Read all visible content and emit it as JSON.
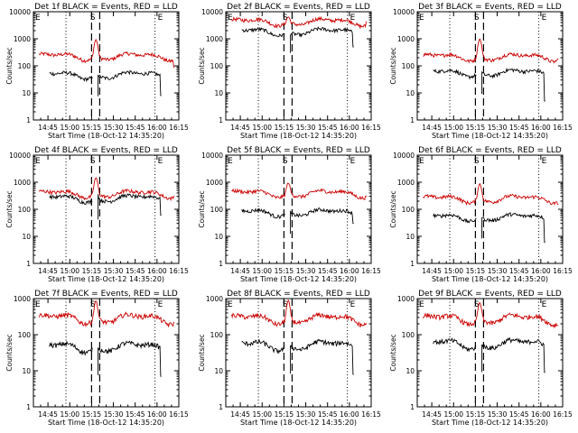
{
  "common": {
    "ylabel": "Counts/sec",
    "xlabel": "Start Time (18-Oct-12 14:35:20)",
    "x_ticks": [
      "14:45",
      "15:00",
      "15:15",
      "15:30",
      "15:45",
      "16:00",
      "16:15"
    ],
    "y_ticks": [
      "1",
      "10",
      "100",
      "1000",
      "10000"
    ],
    "marker_S": "S",
    "marker_E": "E",
    "colors": {
      "events": "#000000",
      "lld": "#cc0000"
    }
  },
  "chart_data": [
    {
      "type": "line",
      "title": "Det 1f BLACK = Events, RED = LLD",
      "x_unit": "minutes after 14:35",
      "ylim": [
        1,
        10000
      ],
      "yscale": "log",
      "xlim": [
        0,
        100
      ],
      "series": [
        {
          "color": "#cc0000",
          "base": 220,
          "peak": 950,
          "start": 4,
          "end": 97,
          "end_drop": 90,
          "gap": false
        },
        {
          "color": "#000000",
          "base": 45,
          "peak": 70,
          "start": 11,
          "end": 88,
          "end_drop": 8,
          "gap": true
        }
      ]
    },
    {
      "type": "line",
      "title": "Det 2f BLACK = Events, RED = LLD",
      "x_unit": "minutes after 14:35",
      "ylim": [
        1,
        10000
      ],
      "yscale": "log",
      "xlim": [
        0,
        100
      ],
      "series": [
        {
          "color": "#cc0000",
          "base": 4200,
          "peak": 7000,
          "start": 4,
          "end": 97,
          "end_drop": 4200,
          "gap": false
        },
        {
          "color": "#000000",
          "base": 1800,
          "peak": 1900,
          "start": 11,
          "end": 88,
          "end_drop": 500,
          "gap": true
        }
      ]
    },
    {
      "type": "line",
      "title": "Det 3f BLACK = Events, RED = LLD",
      "x_unit": "minutes after 14:35",
      "ylim": [
        1,
        10000
      ],
      "yscale": "log",
      "xlim": [
        0,
        100
      ],
      "series": [
        {
          "color": "#cc0000",
          "base": 210,
          "peak": 1000,
          "start": 4,
          "end": 97,
          "end_drop": 180,
          "gap": false
        },
        {
          "color": "#000000",
          "base": 55,
          "peak": 80,
          "start": 11,
          "end": 88,
          "end_drop": 5,
          "gap": true
        }
      ]
    },
    {
      "type": "line",
      "title": "Det 4f BLACK = Events, RED = LLD",
      "x_unit": "minutes after 14:35",
      "ylim": [
        1,
        10000
      ],
      "yscale": "log",
      "xlim": [
        0,
        100
      ],
      "series": [
        {
          "color": "#cc0000",
          "base": 370,
          "peak": 1500,
          "start": 4,
          "end": 97,
          "end_drop": 300,
          "gap": false
        },
        {
          "color": "#000000",
          "base": 250,
          "peak": 600,
          "start": 11,
          "end": 88,
          "end_drop": 60,
          "gap": true
        }
      ]
    },
    {
      "type": "line",
      "title": "Det 5f BLACK = Events, RED = LLD",
      "x_unit": "minutes after 14:35",
      "ylim": [
        1,
        10000
      ],
      "yscale": "log",
      "xlim": [
        0,
        100
      ],
      "series": [
        {
          "color": "#cc0000",
          "base": 380,
          "peak": 1000,
          "start": 4,
          "end": 97,
          "end_drop": 300,
          "gap": false
        },
        {
          "color": "#000000",
          "base": 75,
          "peak": 110,
          "start": 11,
          "end": 88,
          "end_drop": 30,
          "gap": true
        }
      ]
    },
    {
      "type": "line",
      "title": "Det 6f BLACK = Events, RED = LLD",
      "x_unit": "minutes after 14:35",
      "ylim": [
        1,
        10000
      ],
      "yscale": "log",
      "xlim": [
        0,
        100
      ],
      "series": [
        {
          "color": "#cc0000",
          "base": 240,
          "peak": 900,
          "start": 4,
          "end": 97,
          "end_drop": 150,
          "gap": false
        },
        {
          "color": "#000000",
          "base": 50,
          "peak": 80,
          "start": 11,
          "end": 88,
          "end_drop": 6,
          "gap": true
        }
      ]
    },
    {
      "type": "line",
      "title": "Det 7f BLACK = Events, RED = LLD",
      "x_unit": "minutes after 14:35",
      "ylim": [
        1,
        1000
      ],
      "yscale": "log",
      "xlim": [
        0,
        100
      ],
      "series": [
        {
          "color": "#cc0000",
          "base": 280,
          "peak": 900,
          "start": 4,
          "end": 97,
          "end_drop": 220,
          "gap": false
        },
        {
          "color": "#000000",
          "base": 45,
          "peak": 65,
          "start": 11,
          "end": 88,
          "end_drop": 7,
          "gap": true
        }
      ]
    },
    {
      "type": "line",
      "title": "Det 8f BLACK = Events, RED = LLD",
      "x_unit": "minutes after 14:35",
      "ylim": [
        1,
        1000
      ],
      "yscale": "log",
      "xlim": [
        0,
        100
      ],
      "series": [
        {
          "color": "#cc0000",
          "base": 270,
          "peak": 900,
          "start": 4,
          "end": 97,
          "end_drop": 200,
          "gap": false
        },
        {
          "color": "#000000",
          "base": 50,
          "peak": 80,
          "start": 11,
          "end": 88,
          "end_drop": 8,
          "gap": true
        }
      ]
    },
    {
      "type": "line",
      "title": "Det 9f BLACK = Events, RED = LLD",
      "x_unit": "minutes after 14:35",
      "ylim": [
        1,
        1000
      ],
      "yscale": "log",
      "xlim": [
        0,
        100
      ],
      "series": [
        {
          "color": "#cc0000",
          "base": 270,
          "peak": 800,
          "start": 4,
          "end": 97,
          "end_drop": 180,
          "gap": false
        },
        {
          "color": "#000000",
          "base": 55,
          "peak": 85,
          "start": 11,
          "end": 88,
          "end_drop": 9,
          "gap": true
        }
      ]
    }
  ]
}
